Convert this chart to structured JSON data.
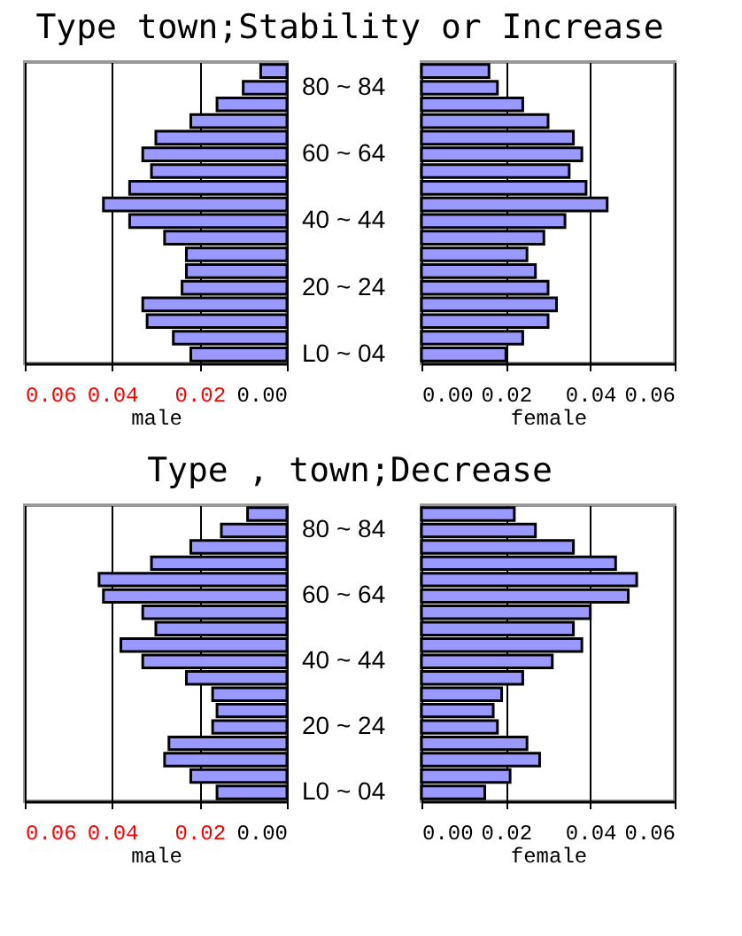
{
  "chart_data": [
    {
      "type": "bar",
      "orientation": "horizontal",
      "title": "Type town;Stability or Increase",
      "xlabel": "male",
      "categories": [
        null,
        "80 ~ 84",
        null,
        null,
        null,
        "60 ~ 64",
        null,
        null,
        null,
        "40 ~ 44",
        null,
        null,
        null,
        "20 ~ 24",
        null,
        null,
        null,
        "L0 ~ 04"
      ],
      "values": [
        0.006,
        0.01,
        0.016,
        0.022,
        0.03,
        0.033,
        0.031,
        0.036,
        0.042,
        0.036,
        0.028,
        0.023,
        0.023,
        0.024,
        0.033,
        0.032,
        0.026,
        0.022
      ],
      "color": "#9999ff",
      "xlim": [
        0.06,
        0
      ],
      "xticks": [
        {
          "value": 0.06,
          "label": "0.06"
        },
        {
          "value": 0.04,
          "label": "0.04"
        },
        {
          "value": 0.02,
          "label": "0.02"
        },
        {
          "value": 0,
          "label": "0.00"
        }
      ],
      "grid": "x"
    },
    {
      "type": "bar",
      "orientation": "horizontal",
      "xlabel": "female",
      "categories": [
        null,
        null,
        null,
        null,
        null,
        null,
        null,
        null,
        null,
        null,
        null,
        null,
        null,
        null,
        null,
        null,
        null,
        null
      ],
      "values": [
        0.016,
        0.018,
        0.024,
        0.03,
        0.036,
        0.038,
        0.035,
        0.039,
        0.044,
        0.034,
        0.029,
        0.025,
        0.027,
        0.03,
        0.032,
        0.03,
        0.024,
        0.02
      ],
      "color": "#9999ff",
      "xlim": [
        0,
        0.06
      ],
      "xticks": [
        {
          "value": 0,
          "label": "0.00"
        },
        {
          "value": 0.02,
          "label": "0.02"
        },
        {
          "value": 0.04,
          "label": "0.04"
        },
        {
          "value": 0.06,
          "label": "0.06"
        }
      ],
      "grid": "x"
    },
    {
      "type": "bar",
      "orientation": "horizontal",
      "title": "Type , town;Decrease",
      "xlabel": "male",
      "categories": [
        null,
        "80 ~ 84",
        null,
        null,
        null,
        "60 ~ 64",
        null,
        null,
        null,
        "40 ~ 44",
        null,
        null,
        null,
        "20 ~ 24",
        null,
        null,
        null,
        "L0 ~ 04"
      ],
      "values": [
        0.009,
        0.015,
        0.022,
        0.031,
        0.043,
        0.042,
        0.033,
        0.03,
        0.038,
        0.033,
        0.023,
        0.017,
        0.016,
        0.017,
        0.027,
        0.028,
        0.022,
        0.016
      ],
      "color": "#9999ff",
      "xlim": [
        0.06,
        0
      ],
      "xticks": [
        {
          "value": 0.06,
          "label": "0.06"
        },
        {
          "value": 0.04,
          "label": "0.04"
        },
        {
          "value": 0.02,
          "label": "0.02"
        },
        {
          "value": 0,
          "label": "0.00"
        }
      ],
      "grid": "x"
    },
    {
      "type": "bar",
      "orientation": "horizontal",
      "xlabel": "female",
      "categories": [
        null,
        null,
        null,
        null,
        null,
        null,
        null,
        null,
        null,
        null,
        null,
        null,
        null,
        null,
        null,
        null,
        null,
        null
      ],
      "values": [
        0.022,
        0.027,
        0.036,
        0.046,
        0.051,
        0.049,
        0.04,
        0.036,
        0.038,
        0.031,
        0.024,
        0.019,
        0.017,
        0.018,
        0.025,
        0.028,
        0.021,
        0.015
      ],
      "color": "#9999ff",
      "xlim": [
        0,
        0.06
      ],
      "xticks": [
        {
          "value": 0,
          "label": "0.00"
        },
        {
          "value": 0.02,
          "label": "0.02"
        },
        {
          "value": 0.04,
          "label": "0.04"
        },
        {
          "value": 0.06,
          "label": "0.06"
        }
      ],
      "grid": "x"
    }
  ]
}
